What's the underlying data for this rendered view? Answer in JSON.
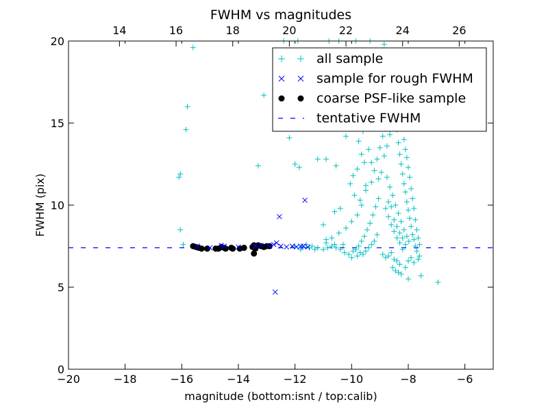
{
  "chart_data": {
    "type": "scatter",
    "title": "FWHM vs magnitudes",
    "xlabel": "magnitude (bottom:isnt / top:calib)",
    "ylabel": "FWHM (pix)",
    "xlim": [
      -20,
      -5
    ],
    "ylim": [
      0,
      20
    ],
    "top_xlim": [
      12.2,
      27.2
    ],
    "x_ticks": [
      -20,
      -18,
      -16,
      -14,
      -12,
      -10,
      -8,
      -6
    ],
    "x_tick_labels": [
      "−20",
      "−18",
      "−16",
      "−14",
      "−12",
      "−10",
      "−8",
      "−6"
    ],
    "y_ticks": [
      0,
      5,
      10,
      15,
      20
    ],
    "y_tick_labels": [
      "0",
      "5",
      "10",
      "15",
      "20"
    ],
    "top_x_ticks": [
      14,
      16,
      18,
      20,
      22,
      24,
      26
    ],
    "top_x_tick_labels": [
      "14",
      "16",
      "18",
      "20",
      "22",
      "24",
      "26"
    ],
    "grid": false,
    "legend_position": "top-right",
    "colors": {
      "all_sample": "#00bfbf",
      "rough": "#0000ff",
      "coarse": "#000000",
      "tentative": "#0000ff"
    },
    "series": [
      {
        "name": "all sample",
        "marker": "plus",
        "color": "#00bfbf",
        "points": [
          [
            -15.6,
            19.6
          ],
          [
            -15.8,
            16.0
          ],
          [
            -15.85,
            14.6
          ],
          [
            -16.1,
            11.7
          ],
          [
            -16.05,
            11.9
          ],
          [
            -16.05,
            8.5
          ],
          [
            -15.95,
            7.6
          ],
          [
            -13.3,
            12.4
          ],
          [
            -13.1,
            16.7
          ],
          [
            -12.2,
            14.1
          ],
          [
            -12.0,
            12.5
          ],
          [
            -11.85,
            12.3
          ],
          [
            -11.2,
            12.8
          ],
          [
            -10.9,
            12.8
          ],
          [
            -10.55,
            12.4
          ],
          [
            -11.0,
            8.8
          ],
          [
            -10.6,
            9.6
          ],
          [
            -10.4,
            9.8
          ],
          [
            -10.75,
            16.2
          ],
          [
            -10.3,
            15.8
          ],
          [
            -10.05,
            15.1
          ],
          [
            -9.9,
            14.7
          ],
          [
            -10.2,
            14.2
          ],
          [
            -10.45,
            14.8
          ],
          [
            -10.6,
            15.4
          ],
          [
            -9.75,
            13.9
          ],
          [
            -9.65,
            13.1
          ],
          [
            -9.55,
            12.6
          ],
          [
            -9.8,
            12.2
          ],
          [
            -9.95,
            11.8
          ],
          [
            -10.05,
            11.3
          ],
          [
            -9.9,
            10.6
          ],
          [
            -9.7,
            10.3
          ],
          [
            -9.5,
            10.9
          ],
          [
            -9.3,
            11.4
          ],
          [
            -9.2,
            12.1
          ],
          [
            -9.1,
            12.8
          ],
          [
            -9.0,
            13.5
          ],
          [
            -8.9,
            14.2
          ],
          [
            -8.85,
            15.0
          ],
          [
            -8.7,
            15.6
          ],
          [
            -8.6,
            16.3
          ],
          [
            -8.5,
            16.9
          ],
          [
            -8.45,
            15.9
          ],
          [
            -8.4,
            14.6
          ],
          [
            -8.35,
            13.8
          ],
          [
            -8.3,
            13.1
          ],
          [
            -8.25,
            12.5
          ],
          [
            -8.2,
            11.9
          ],
          [
            -8.15,
            11.3
          ],
          [
            -8.1,
            10.8
          ],
          [
            -8.05,
            10.2
          ],
          [
            -8.0,
            9.7
          ],
          [
            -7.95,
            9.2
          ],
          [
            -7.9,
            8.7
          ],
          [
            -7.85,
            8.2
          ],
          [
            -7.8,
            7.9
          ],
          [
            -7.75,
            7.5
          ],
          [
            -7.7,
            7.2
          ],
          [
            -7.6,
            6.9
          ],
          [
            -8.75,
            11.7
          ],
          [
            -8.65,
            11.1
          ],
          [
            -8.55,
            10.6
          ],
          [
            -8.45,
            10.0
          ],
          [
            -8.35,
            9.5
          ],
          [
            -8.25,
            9.0
          ],
          [
            -8.15,
            8.5
          ],
          [
            -8.05,
            8.1
          ],
          [
            -7.98,
            7.8
          ],
          [
            -8.8,
            9.8
          ],
          [
            -8.7,
            9.3
          ],
          [
            -8.6,
            8.8
          ],
          [
            -8.5,
            8.4
          ],
          [
            -8.4,
            8.0
          ],
          [
            -8.3,
            7.7
          ],
          [
            -8.2,
            7.3
          ],
          [
            -9.05,
            10.4
          ],
          [
            -9.15,
            9.9
          ],
          [
            -9.25,
            9.4
          ],
          [
            -9.35,
            8.9
          ],
          [
            -9.45,
            8.5
          ],
          [
            -9.55,
            8.1
          ],
          [
            -9.65,
            7.8
          ],
          [
            -9.75,
            7.5
          ],
          [
            -9.85,
            7.3
          ],
          [
            -9.95,
            7.2
          ],
          [
            -10.1,
            7.0
          ],
          [
            -10.25,
            7.1
          ],
          [
            -10.4,
            7.3
          ],
          [
            -10.55,
            7.4
          ],
          [
            -10.7,
            7.5
          ],
          [
            -10.85,
            7.4
          ],
          [
            -11.0,
            7.3
          ],
          [
            -11.2,
            7.4
          ],
          [
            -11.4,
            7.5
          ],
          [
            -11.6,
            7.6
          ],
          [
            -11.75,
            7.4
          ],
          [
            -8.9,
            7.0
          ],
          [
            -8.8,
            6.8
          ],
          [
            -8.7,
            6.9
          ],
          [
            -8.6,
            7.1
          ],
          [
            -8.5,
            6.7
          ],
          [
            -8.4,
            6.6
          ],
          [
            -8.3,
            6.4
          ],
          [
            -8.1,
            6.2
          ],
          [
            -8.0,
            6.6
          ],
          [
            -7.9,
            6.8
          ],
          [
            -7.8,
            6.5
          ],
          [
            -7.65,
            6.7
          ],
          [
            -8.55,
            6.2
          ],
          [
            -8.45,
            6.0
          ],
          [
            -8.35,
            5.9
          ],
          [
            -8.25,
            5.8
          ],
          [
            -8.0,
            5.5
          ],
          [
            -7.55,
            5.7
          ],
          [
            -6.95,
            5.3
          ],
          [
            -8.95,
            12.0
          ],
          [
            -9.05,
            11.6
          ],
          [
            -8.85,
            13.0
          ],
          [
            -8.75,
            13.6
          ],
          [
            -8.65,
            14.3
          ],
          [
            -8.55,
            14.9
          ],
          [
            -8.95,
            15.3
          ],
          [
            -9.1,
            15.9
          ],
          [
            -9.35,
            16.4
          ],
          [
            -9.6,
            16.8
          ],
          [
            -9.8,
            16.1
          ],
          [
            -10.0,
            16.5
          ],
          [
            -10.15,
            17.0
          ],
          [
            -10.35,
            17.2
          ],
          [
            -10.5,
            16.7
          ],
          [
            -10.7,
            17.1
          ],
          [
            -10.9,
            16.9
          ],
          [
            -11.1,
            16.4
          ],
          [
            -11.3,
            16.8
          ],
          [
            -11.5,
            16.1
          ],
          [
            -9.4,
            13.4
          ],
          [
            -9.6,
            14.5
          ],
          [
            -9.25,
            15.0
          ],
          [
            -9.45,
            15.5
          ],
          [
            -8.2,
            14.9
          ],
          [
            -8.15,
            14.0
          ],
          [
            -8.1,
            13.4
          ],
          [
            -8.05,
            12.9
          ],
          [
            -8.0,
            12.3
          ],
          [
            -7.95,
            11.7
          ],
          [
            -7.9,
            11.0
          ],
          [
            -7.85,
            10.4
          ],
          [
            -7.8,
            9.8
          ],
          [
            -7.75,
            9.1
          ],
          [
            -7.7,
            8.5
          ],
          [
            -7.65,
            8.0
          ],
          [
            -7.6,
            7.6
          ],
          [
            -8.7,
            10.2
          ],
          [
            -8.6,
            9.9
          ],
          [
            -8.5,
            9.1
          ],
          [
            -8.4,
            8.7
          ],
          [
            -8.3,
            8.3
          ],
          [
            -8.2,
            8.0
          ],
          [
            -8.1,
            7.6
          ],
          [
            -9.1,
            8.2
          ],
          [
            -9.2,
            7.8
          ],
          [
            -9.3,
            7.6
          ],
          [
            -9.4,
            7.4
          ],
          [
            -9.5,
            7.2
          ],
          [
            -9.6,
            7.0
          ],
          [
            -9.7,
            7.1
          ],
          [
            -9.8,
            6.9
          ],
          [
            -10.0,
            6.8
          ],
          [
            -10.3,
            7.6
          ],
          [
            -10.6,
            7.6
          ],
          [
            -10.9,
            7.7
          ],
          [
            -11.3,
            7.3
          ],
          [
            -11.5,
            7.4
          ],
          [
            -11.8,
            7.3
          ],
          [
            -12.0,
            7.5
          ],
          [
            -9.3,
            12.6
          ],
          [
            -9.5,
            11.2
          ],
          [
            -9.65,
            10.0
          ],
          [
            -9.8,
            9.4
          ],
          [
            -10.0,
            9.0
          ],
          [
            -10.2,
            8.6
          ],
          [
            -10.45,
            8.3
          ],
          [
            -10.7,
            8.0
          ],
          [
            -10.9,
            7.9
          ],
          [
            -12.4,
            20.0
          ],
          [
            -11.9,
            20.0
          ],
          [
            -10.8,
            20.0
          ],
          [
            -10.45,
            20.0
          ],
          [
            -9.85,
            20.0
          ],
          [
            -9.35,
            20.0
          ],
          [
            -8.85,
            19.8
          ]
        ]
      },
      {
        "name": "sample for rough FWHM",
        "marker": "x",
        "color": "#0000ff",
        "points": [
          [
            -12.7,
            4.7
          ],
          [
            -12.55,
            9.3
          ],
          [
            -11.65,
            10.3
          ],
          [
            -14.6,
            7.55
          ],
          [
            -13.2,
            7.55
          ],
          [
            -12.75,
            7.6
          ],
          [
            -12.65,
            7.7
          ],
          [
            -12.5,
            7.5
          ],
          [
            -12.3,
            7.45
          ],
          [
            -12.1,
            7.5
          ],
          [
            -11.95,
            7.45
          ],
          [
            -11.8,
            7.5
          ],
          [
            -11.7,
            7.5
          ],
          [
            -11.55,
            7.45
          ],
          [
            -12.9,
            7.5
          ],
          [
            -13.4,
            7.5
          ],
          [
            -14.0,
            7.45
          ],
          [
            -14.5,
            7.5
          ],
          [
            -15.0,
            7.4
          ],
          [
            -15.45,
            7.5
          ]
        ]
      },
      {
        "name": "coarse PSF-like sample",
        "marker": "circle",
        "color": "#000000",
        "points": [
          [
            -15.6,
            7.5
          ],
          [
            -15.5,
            7.45
          ],
          [
            -15.4,
            7.4
          ],
          [
            -15.3,
            7.35
          ],
          [
            -15.1,
            7.35
          ],
          [
            -14.8,
            7.35
          ],
          [
            -14.7,
            7.35
          ],
          [
            -14.6,
            7.45
          ],
          [
            -14.5,
            7.4
          ],
          [
            -14.45,
            7.35
          ],
          [
            -14.25,
            7.4
          ],
          [
            -14.2,
            7.35
          ],
          [
            -13.95,
            7.35
          ],
          [
            -13.8,
            7.4
          ],
          [
            -13.5,
            7.45
          ],
          [
            -13.45,
            7.55
          ],
          [
            -13.4,
            7.35
          ],
          [
            -13.35,
            7.5
          ],
          [
            -13.3,
            7.55
          ],
          [
            -13.2,
            7.5
          ],
          [
            -13.1,
            7.45
          ],
          [
            -13.0,
            7.5
          ],
          [
            -12.9,
            7.5
          ],
          [
            -13.45,
            7.05
          ]
        ]
      },
      {
        "name": "tentative FWHM",
        "marker": "dashed-line",
        "color": "#0000ff",
        "value": 7.4
      }
    ]
  }
}
